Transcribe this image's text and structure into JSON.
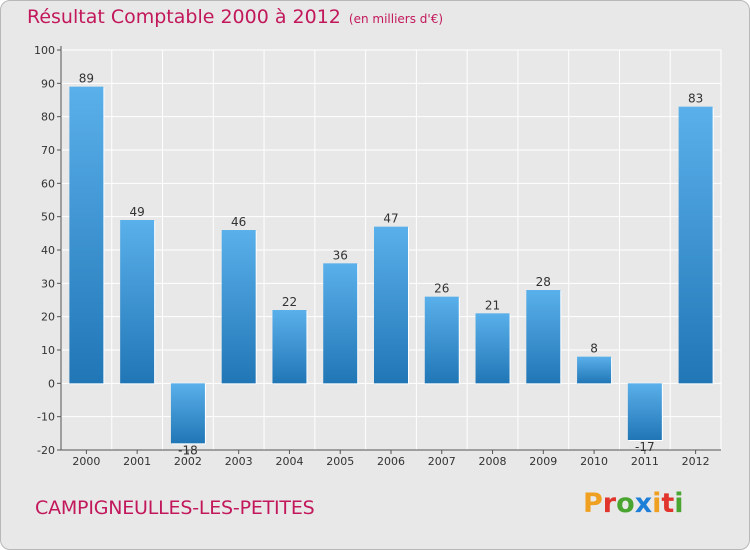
{
  "header": {
    "title": "Résultat Comptable 2000 à 2012",
    "subtitle": "(en milliers d'€)"
  },
  "footer": {
    "commune": "CAMPIGNEULLES-LES-PETITES",
    "brand": "Proxiti"
  },
  "colors": {
    "accent": "#c2185b",
    "bar_light": "#5ab0ea",
    "bar_dark": "#2176b6",
    "background": "#e8e8e8",
    "brand_letters": [
      "#f0a020",
      "#e0342c",
      "#4aa530",
      "#1e7fd8",
      "#f0a020",
      "#e0342c",
      "#4aa530"
    ]
  },
  "chart_data": {
    "type": "bar",
    "title": "Résultat Comptable 2000 à 2012",
    "subtitle": "(en milliers d'€)",
    "categories": [
      "2000",
      "2001",
      "2002",
      "2003",
      "2004",
      "2005",
      "2006",
      "2007",
      "2008",
      "2009",
      "2010",
      "2011",
      "2012"
    ],
    "values": [
      89,
      49,
      -18,
      46,
      22,
      36,
      47,
      26,
      21,
      28,
      8,
      -17,
      83
    ],
    "ylim": [
      -20,
      100
    ],
    "yticks": [
      -20,
      -10,
      0,
      10,
      20,
      30,
      40,
      50,
      60,
      70,
      80,
      90,
      100
    ],
    "grid": true,
    "legend": "none"
  }
}
